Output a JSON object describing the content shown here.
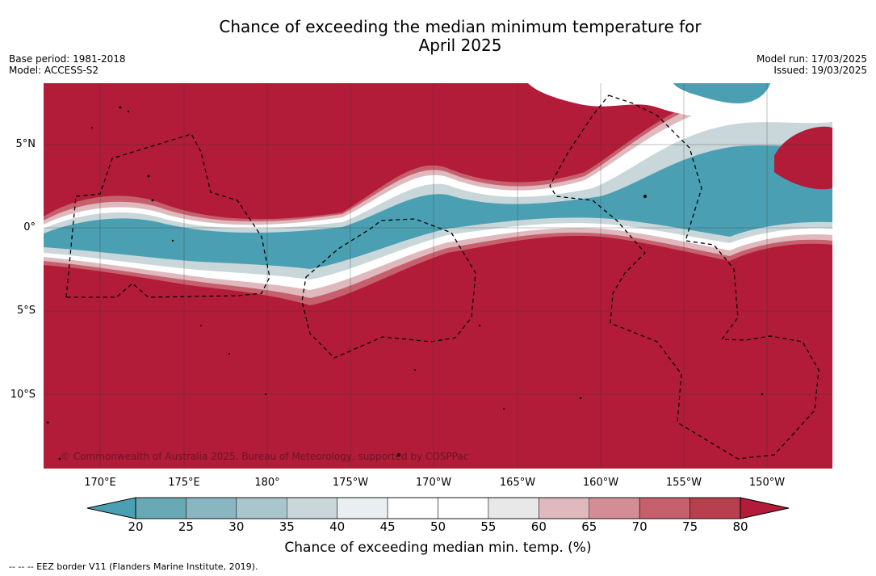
{
  "title_line1": "Chance of exceeding the median minimum temperature for",
  "title_line2": "April 2025",
  "base_period": "Base period: 1981-2018",
  "model": "Model: ACCESS-S2",
  "model_run": "Model run: 17/03/2025",
  "issued": "Issued: 19/03/2025",
  "copyright": "© Commonwealth of Australia 2025, Bureau of Meteorology, supported by COSPPac",
  "lat_labels": [
    "5°N",
    "0°",
    "5°S",
    "10°S"
  ],
  "lon_labels": [
    "170°E",
    "175°E",
    "180°",
    "175°W",
    "170°W",
    "165°W",
    "160°W",
    "155°W",
    "150°W"
  ],
  "colorbar": {
    "label": "Chance of exceeding median min. temp. (%)",
    "ticks": [
      "20",
      "25",
      "30",
      "35",
      "40",
      "45",
      "50",
      "55",
      "60",
      "65",
      "70",
      "75",
      "80"
    ],
    "colors": [
      "#69a9b6",
      "#88b7c2",
      "#a9c6cc",
      "#c9d7da",
      "#e8eef1",
      "#ffffff",
      "#ffffff",
      "#e8e8e8",
      "#dfb9be",
      "#d48d95",
      "#c6606c",
      "#b7404e"
    ],
    "under_color": "#4aa0b2",
    "over_color": "#b21c38"
  },
  "colors": {
    "warm_max": "#b21c38",
    "cool_max": "#4aa0b2"
  },
  "footer": "-- -- -- EEZ border V11 (Flanders Marine Institute, 2019)."
}
